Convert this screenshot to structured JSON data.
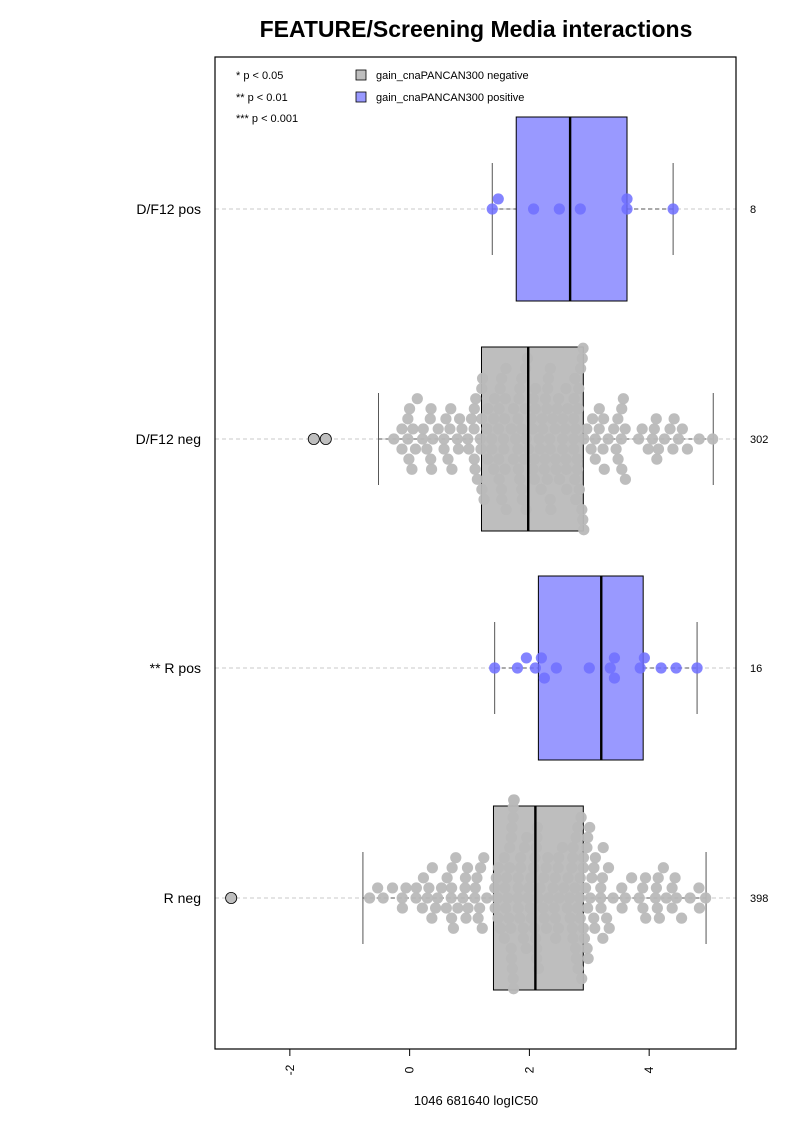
{
  "chart_data": {
    "type": "boxplot-beeswarm",
    "title": "FEATURE/Screening Media interactions",
    "xlabel": "1046 681640 logIC50",
    "xlim": [
      -3.25,
      5.45
    ],
    "x_ticks": [
      "-2",
      "0",
      "2",
      "4"
    ],
    "grid": "horizontal dashed at each group",
    "legend": {
      "placement": "top-left",
      "significance": [
        "* p < 0.05",
        "** p < 0.01",
        "*** p < 0.001"
      ],
      "entries": [
        {
          "label": "gain_cnaPANCAN300 negative",
          "color": "#bebebe"
        },
        {
          "label": "gain_cnaPANCAN300 positive",
          "color": "#9999ff"
        }
      ]
    },
    "groups": [
      {
        "label": "D/F12 pos",
        "n": "8",
        "status": "positive",
        "whisker_low": 1.38,
        "q1": 1.78,
        "median": 2.68,
        "q3": 3.63,
        "whisker_high": 4.4,
        "points": [
          1.38,
          1.48,
          2.07,
          2.5,
          2.85,
          3.63,
          3.63,
          4.4
        ],
        "outliers": []
      },
      {
        "label": "D/F12 neg",
        "n": "302",
        "status": "negative",
        "whisker_low": -0.52,
        "q1": 1.2,
        "median": 1.98,
        "q3": 2.9,
        "whisker_high": 5.07,
        "outliers": [
          -1.6,
          -1.4
        ]
      },
      {
        "label": "** R pos",
        "n": "16",
        "status": "positive",
        "whisker_low": 1.42,
        "q1": 2.15,
        "median": 3.2,
        "q3": 3.9,
        "whisker_high": 4.8,
        "points": [
          1.42,
          1.8,
          1.95,
          2.1,
          2.2,
          2.25,
          2.45,
          3.0,
          3.35,
          3.42,
          3.42,
          3.85,
          3.92,
          4.2,
          4.45,
          4.8
        ],
        "outliers": []
      },
      {
        "label": "R neg",
        "n": "398",
        "status": "negative",
        "whisker_low": -0.78,
        "q1": 1.4,
        "median": 2.1,
        "q3": 2.9,
        "whisker_high": 4.95,
        "outliers": [
          -2.98
        ]
      }
    ]
  }
}
